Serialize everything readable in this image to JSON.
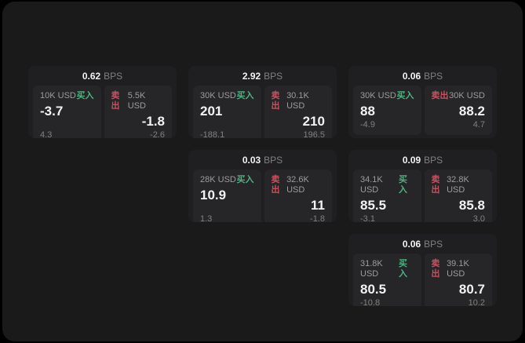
{
  "labels": {
    "buy_tag": "买入",
    "sell_tag": "卖出",
    "bps_suffix": "BPS"
  },
  "colors": {
    "buy_green": "#4db380",
    "sell_red": "#c9515f",
    "window_bg": "#1a1a1b",
    "card_bg": "#1f1f21",
    "panel_bg": "#262628"
  },
  "cards": [
    {
      "bps": "0.62",
      "row": 1,
      "col": 1,
      "buy": {
        "size": "10K USD",
        "value": "-3.7",
        "sub": "4.3"
      },
      "sell": {
        "size": "5.5K USD",
        "value": "-1.8",
        "sub": "-2.6"
      }
    },
    {
      "bps": "2.92",
      "row": 1,
      "col": 2,
      "buy": {
        "size": "30K USD",
        "value": "201",
        "sub": "-188.1"
      },
      "sell": {
        "size": "30.1K USD",
        "value": "210",
        "sub": "196.5"
      }
    },
    {
      "bps": "0.06",
      "row": 1,
      "col": 3,
      "buy": {
        "size": "30K USD",
        "value": "88",
        "sub": "-4.9"
      },
      "sell": {
        "size": "30K USD",
        "value": "88.2",
        "sub": "4.7"
      }
    },
    {
      "bps": "0.03",
      "row": 2,
      "col": 2,
      "buy": {
        "size": "28K USD",
        "value": "10.9",
        "sub": "1.3"
      },
      "sell": {
        "size": "32.6K USD",
        "value": "11",
        "sub": "-1.8"
      }
    },
    {
      "bps": "0.09",
      "row": 2,
      "col": 3,
      "buy": {
        "size": "34.1K USD",
        "value": "85.5",
        "sub": "-3.1"
      },
      "sell": {
        "size": "32.8K USD",
        "value": "85.8",
        "sub": "3.0"
      }
    },
    {
      "bps": "0.06",
      "row": 3,
      "col": 3,
      "buy": {
        "size": "31.8K USD",
        "value": "80.5",
        "sub": "-10.8"
      },
      "sell": {
        "size": "39.1K USD",
        "value": "80.7",
        "sub": "10.2"
      }
    }
  ]
}
